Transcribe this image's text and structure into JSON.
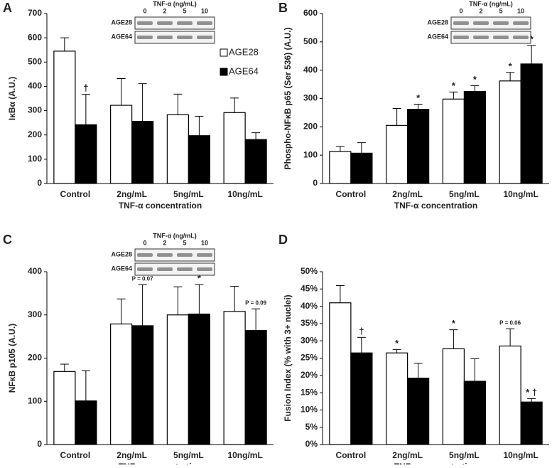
{
  "chart_data": [
    {
      "type": "bar",
      "label": "A",
      "ylabel": "IκBα (A.U.)",
      "xlabel": "TNF-α concentration",
      "categories": [
        "Control",
        "2ng/mL",
        "5ng/mL",
        "10ng/mL"
      ],
      "series": [
        {
          "name": "AGE28",
          "color": "#ffffff",
          "values": [
            545,
            322,
            283,
            292
          ],
          "errors": [
            55,
            110,
            85,
            60
          ],
          "annotations": [
            null,
            null,
            null,
            null
          ]
        },
        {
          "name": "AGE64",
          "color": "#000000",
          "values": [
            242,
            256,
            197,
            181
          ],
          "errors": [
            125,
            155,
            80,
            28
          ],
          "annotations": [
            "†",
            null,
            null,
            null
          ]
        }
      ],
      "ylim": [
        0,
        700
      ],
      "yticks": [
        0,
        100,
        200,
        300,
        400,
        500,
        600,
        700
      ],
      "legend": "upper right",
      "blot": {
        "title": "TNF-α (ng/mL)",
        "lanes": [
          "0",
          "2",
          "5",
          "10"
        ],
        "rows": [
          "AGE28",
          "AGE64"
        ]
      }
    },
    {
      "type": "bar",
      "label": "B",
      "ylabel": "Phospho-NFκB p65 (Ser 536) (A.U.)",
      "xlabel": "TNF-α concentration",
      "categories": [
        "Control",
        "2ng/mL",
        "5ng/mL",
        "10ng/mL"
      ],
      "series": [
        {
          "name": "AGE28",
          "color": "#ffffff",
          "values": [
            113,
            205,
            298,
            362
          ],
          "errors": [
            18,
            60,
            25,
            30
          ],
          "annotations": [
            null,
            null,
            "*",
            "*"
          ]
        },
        {
          "name": "AGE64",
          "color": "#000000",
          "values": [
            107,
            262,
            325,
            422
          ],
          "errors": [
            37,
            18,
            20,
            65
          ],
          "annotations": [
            null,
            "*",
            "*",
            "*"
          ]
        }
      ],
      "ylim": [
        0,
        600
      ],
      "yticks": [
        0,
        100,
        200,
        300,
        400,
        500,
        600
      ],
      "blot": {
        "title": "TNF-α (ng/mL)",
        "lanes": [
          "0",
          "2",
          "5",
          "10"
        ],
        "rows": [
          "AGE28",
          "AGE64"
        ]
      }
    },
    {
      "type": "bar",
      "label": "C",
      "ylabel": "NFκB p105  (A.U.)",
      "xlabel": "TNF-α concentration",
      "categories": [
        "Control",
        "2ng/mL",
        "5ng/mL",
        "10ng/mL"
      ],
      "series": [
        {
          "name": "AGE28",
          "color": "#ffffff",
          "values": [
            169,
            279,
            300,
            308
          ],
          "errors": [
            17,
            58,
            65,
            58
          ],
          "annotations": [
            null,
            null,
            null,
            null
          ]
        },
        {
          "name": "AGE64",
          "color": "#000000",
          "values": [
            101,
            275,
            302,
            264
          ],
          "errors": [
            70,
            95,
            68,
            50
          ],
          "annotations": [
            null,
            "P = 0.07",
            "*",
            "P = 0.09"
          ]
        }
      ],
      "ylim": [
        0,
        400
      ],
      "yticks": [
        0,
        100,
        200,
        300,
        400
      ],
      "blot": {
        "title": "TNF-α (ng/mL)",
        "lanes": [
          "0",
          "2",
          "5",
          "10"
        ],
        "rows": [
          "AGE28",
          "AGE64"
        ]
      }
    },
    {
      "type": "bar",
      "label": "D",
      "ylabel": "Fusion Index (% with 3+ nuclei)",
      "xlabel": "TNF-α concentration",
      "categories": [
        "Control",
        "2ng/mL",
        "5ng/mL",
        "10ng/mL"
      ],
      "series": [
        {
          "name": "AGE28",
          "color": "#ffffff",
          "values": [
            41,
            26.5,
            27.7,
            28.5
          ],
          "errors": [
            5,
            1,
            5.5,
            5
          ],
          "annotations": [
            null,
            "*",
            "*",
            "P = 0.06"
          ]
        },
        {
          "name": "AGE64",
          "color": "#000000",
          "values": [
            26.5,
            19.2,
            18.3,
            12.3
          ],
          "errors": [
            4.5,
            4.3,
            6.5,
            1
          ],
          "annotations": [
            "†",
            null,
            null,
            "* †"
          ]
        }
      ],
      "ylim": [
        0,
        50
      ],
      "yticks": [
        {
          "value": 0,
          "label": "0%"
        },
        {
          "value": 5,
          "label": "5%"
        },
        {
          "value": 10,
          "label": "10%"
        },
        {
          "value": 15,
          "label": "15%"
        },
        {
          "value": 20,
          "label": "20%"
        },
        {
          "value": 25,
          "label": "25%"
        },
        {
          "value": 30,
          "label": "30%"
        },
        {
          "value": 35,
          "label": "35%"
        },
        {
          "value": 40,
          "label": "40%"
        },
        {
          "value": 45,
          "label": "45%"
        },
        {
          "value": 50,
          "label": "50%"
        }
      ]
    }
  ]
}
